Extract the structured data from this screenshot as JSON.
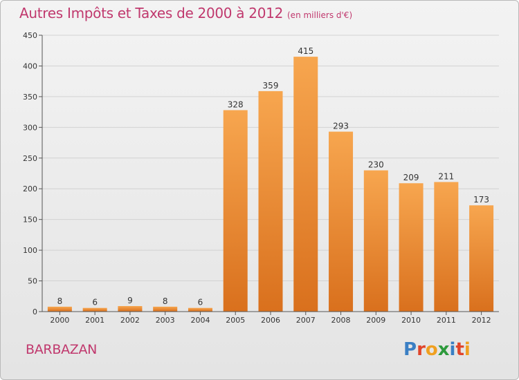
{
  "header": {
    "title": "Autres Impôts et Taxes de 2000 à 2012",
    "subtitle": "(en milliers d'€)"
  },
  "footer": {
    "commune": "BARBAZAN",
    "brand": "Proxiti",
    "brand_colors": [
      "#3a7fc4",
      "#e0452b",
      "#f0a020",
      "#2d9a3c",
      "#3a7fc4",
      "#e0452b",
      "#f0a020"
    ]
  },
  "chart_data": {
    "type": "bar",
    "categories": [
      "2000",
      "2001",
      "2002",
      "2003",
      "2004",
      "2005",
      "2006",
      "2007",
      "2008",
      "2009",
      "2010",
      "2011",
      "2012"
    ],
    "values": [
      8,
      6,
      9,
      8,
      6,
      328,
      359,
      415,
      293,
      230,
      209,
      211,
      173
    ],
    "title": "Autres Impôts et Taxes de 2000 à 2012",
    "subtitle": "(en milliers d'€)",
    "ylim": [
      0,
      450
    ],
    "yticks": [
      0,
      50,
      100,
      150,
      200,
      250,
      300,
      350,
      400,
      450
    ],
    "grid": true,
    "colors": {
      "bar_top": "#f7a64f",
      "bar_bottom": "#d9701d",
      "grid": "#d2d2d2",
      "axis": "#555555"
    }
  }
}
